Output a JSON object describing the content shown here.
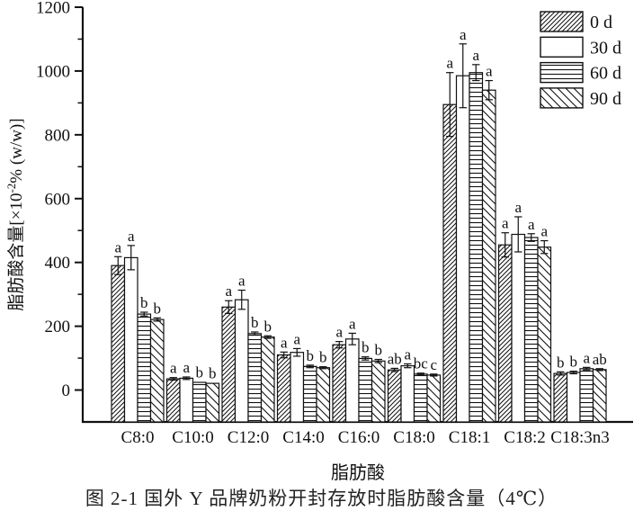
{
  "chart_data": {
    "type": "bar",
    "title": "图 2-1  国外 Y 品牌奶粉开封存放时脂肪酸含量（4℃）",
    "xlabel": "脂肪酸",
    "ylabel": "脂肪酸含量[×10⁻²% (w/w)]",
    "ylabel_parts": {
      "prefix": "脂肪酸含量[×10",
      "superscript": "-2",
      "suffix": "% (w/w)]"
    },
    "ylim": [
      -100,
      1200
    ],
    "yticks": [
      0,
      200,
      400,
      600,
      800,
      1000,
      1200
    ],
    "minor_yticks": [
      100,
      300,
      500,
      700,
      900,
      1100
    ],
    "grid": false,
    "legend_position": "top-right",
    "categories": [
      "C8:0",
      "C10:0",
      "C12:0",
      "C14:0",
      "C16:0",
      "C18:0",
      "C18:1",
      "C18:2",
      "C18:3n3"
    ],
    "series": [
      {
        "name": "0 d",
        "fill_pattern": "diagonal-up-hatch",
        "values": [
          390,
          35,
          260,
          110,
          142,
          63,
          895,
          455,
          52
        ],
        "errors": [
          28,
          4,
          20,
          9,
          10,
          5,
          100,
          38,
          5
        ],
        "sig_letters": [
          "a",
          "a",
          "a",
          "a",
          "a",
          "ab",
          "a",
          "a",
          "b"
        ]
      },
      {
        "name": "30 d",
        "fill_pattern": "white",
        "values": [
          415,
          37,
          283,
          118,
          160,
          76,
          985,
          488,
          55
        ],
        "errors": [
          38,
          4,
          30,
          12,
          18,
          6,
          100,
          55,
          4
        ],
        "sig_letters": [
          "a",
          "a",
          "a",
          "a",
          "a",
          "a",
          "a",
          "a",
          "b"
        ]
      },
      {
        "name": "60 d",
        "fill_pattern": "horizontal-lines",
        "values": [
          238,
          24,
          177,
          74,
          99,
          50,
          995,
          478,
          67
        ],
        "errors": [
          6,
          2,
          5,
          4,
          5,
          3,
          25,
          12,
          4
        ],
        "sig_letters": [
          "b",
          "b",
          "b",
          "b",
          "b",
          "bc",
          "a",
          "a",
          "a"
        ]
      },
      {
        "name": "90 d",
        "fill_pattern": "diagonal-down-hatch",
        "values": [
          221,
          21,
          166,
          70,
          91,
          47,
          940,
          448,
          64
        ],
        "errors": [
          5,
          2,
          4,
          3,
          5,
          3,
          30,
          20,
          3
        ],
        "sig_letters": [
          "b",
          "b",
          "b",
          "b",
          "b",
          "c",
          "a",
          "a",
          "ab"
        ]
      }
    ],
    "colors": {
      "axis": "#111111",
      "bar_outline": "#111111",
      "background": "#ffffff"
    }
  }
}
